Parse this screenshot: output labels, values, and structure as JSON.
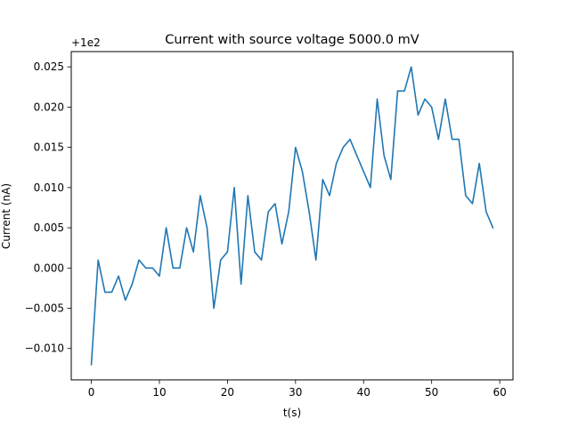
{
  "chart_data": {
    "type": "line",
    "title": "Current with source voltage 5000.0 mV",
    "xlabel": "t(s)",
    "ylabel": "Current (nA)",
    "y_offset_label": "+1e2",
    "xlim": [
      -2.95,
      61.95
    ],
    "ylim": [
      -0.0139,
      0.0269
    ],
    "x_ticks": [
      0,
      10,
      20,
      30,
      40,
      50,
      60
    ],
    "x_tick_labels": [
      "0",
      "10",
      "20",
      "30",
      "40",
      "50",
      "60"
    ],
    "y_ticks": [
      -0.01,
      -0.005,
      0.0,
      0.005,
      0.01,
      0.015,
      0.02,
      0.025
    ],
    "y_tick_labels": [
      "−0.010",
      "−0.005",
      "0.000",
      "0.005",
      "0.010",
      "0.015",
      "0.020",
      "0.025"
    ],
    "grid": false,
    "line_color": "#1f77b4",
    "series": [
      {
        "x": [
          0,
          1,
          2,
          3,
          4,
          5,
          6,
          7,
          8,
          9,
          10,
          11,
          12,
          13,
          14,
          15,
          16,
          17,
          18,
          19,
          20,
          21,
          22,
          23,
          24,
          25,
          26,
          27,
          28,
          29,
          30,
          31,
          32,
          33,
          34,
          35,
          36,
          37,
          38,
          39,
          40,
          41,
          42,
          43,
          44,
          45,
          46,
          47,
          48,
          49,
          50,
          51,
          52,
          53,
          54,
          55,
          56,
          57,
          58,
          59
        ],
        "values": [
          -0.012,
          0.001,
          -0.003,
          -0.003,
          -0.001,
          -0.004,
          -0.002,
          0.001,
          0.0,
          0.0,
          -0.001,
          0.005,
          0.0,
          0.0,
          0.005,
          0.002,
          0.009,
          0.005,
          -0.005,
          0.001,
          0.002,
          0.01,
          -0.002,
          0.009,
          0.002,
          0.001,
          0.007,
          0.008,
          0.003,
          0.007,
          0.015,
          0.012,
          0.007,
          0.001,
          0.011,
          0.009,
          0.013,
          0.015,
          0.016,
          0.014,
          0.012,
          0.01,
          0.021,
          0.014,
          0.011,
          0.022,
          0.022,
          0.025,
          0.019,
          0.021,
          0.02,
          0.016,
          0.021,
          0.016,
          0.016,
          0.009,
          0.008,
          0.013,
          0.007,
          0.005
        ]
      }
    ]
  }
}
